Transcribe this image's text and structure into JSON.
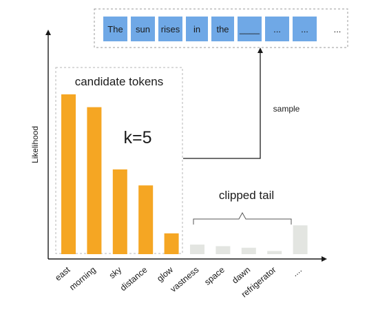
{
  "axes": {
    "ylabel": "Likelihood"
  },
  "sequence": {
    "tokens": [
      "The",
      "sun",
      "rises",
      "in",
      "the",
      "____",
      "...",
      "..."
    ],
    "trailing": "..."
  },
  "candidate_box": {
    "label": "candidate tokens",
    "k_label": "k=5"
  },
  "sample_label": "sample",
  "tail": {
    "label": "clipped tail"
  },
  "colors": {
    "candidate": "#f5a623",
    "tail": "#e3e5e1",
    "token_box": "#6fa8e6",
    "token_text": "#27425e",
    "axis": "#1a1a1a",
    "dashed": "#b5b5b5"
  },
  "chart_data": {
    "type": "bar",
    "categories": [
      "east",
      "morning",
      "sky",
      "distance",
      "glow",
      "vastness",
      "space",
      "dawn",
      "refrigerator",
      "...."
    ],
    "values": [
      100,
      92,
      53,
      43,
      13,
      6,
      5,
      4,
      2,
      18
    ],
    "groups": [
      "candidate",
      "candidate",
      "candidate",
      "candidate",
      "candidate",
      "tail",
      "tail",
      "tail",
      "tail",
      "tail"
    ],
    "ylabel": "Likelihood"
  }
}
